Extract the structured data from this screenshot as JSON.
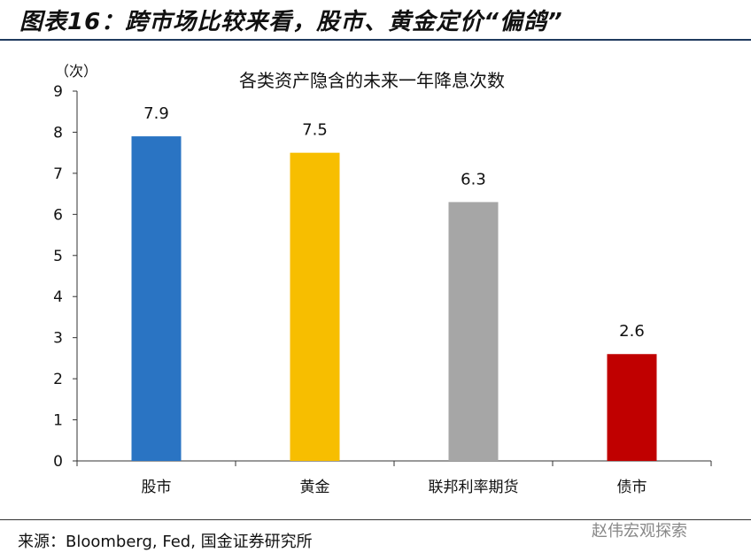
{
  "figure_title": "图表16：跨市场比较来看，股市、黄金定价“偏鸽”",
  "source": "来源：Bloomberg, Fed, 国金证券研究所",
  "watermark": "赵伟宏观探索",
  "chart_data": {
    "type": "bar",
    "title": "各类资产隐含的未来一年降息次数",
    "ylabel": "（次）",
    "xlabel": "",
    "categories": [
      "股市",
      "黄金",
      "联邦利率期货",
      "债市"
    ],
    "values": [
      7.9,
      7.5,
      6.3,
      2.6
    ],
    "data_labels": [
      "7.9",
      "7.5",
      "6.3",
      "2.6"
    ],
    "colors": [
      "#2a74c3",
      "#f7be00",
      "#a6a6a6",
      "#c00000"
    ],
    "ylim": [
      0,
      9
    ],
    "yticks": [
      0,
      1,
      2,
      3,
      4,
      5,
      6,
      7,
      8,
      9
    ],
    "grid": false,
    "legend": "none"
  }
}
